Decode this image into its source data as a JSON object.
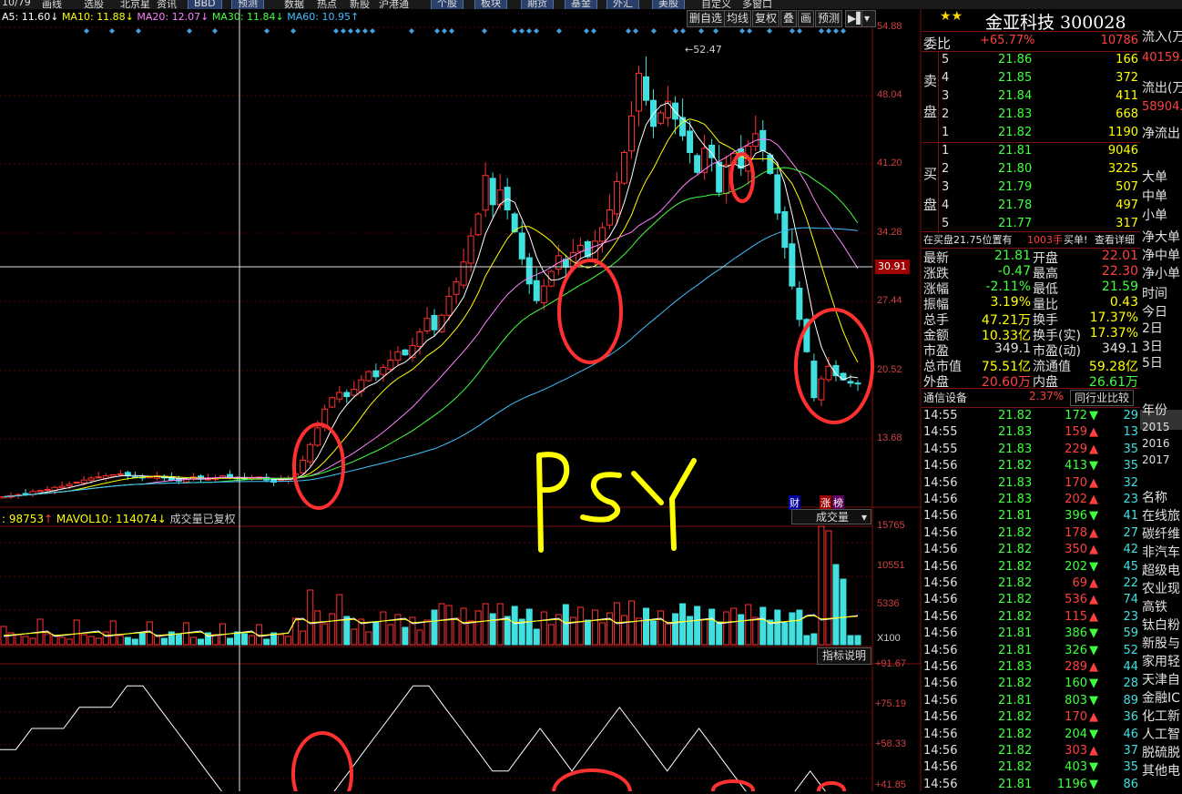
{
  "menu": {
    "items": [
      "10/79",
      "画线",
      "选股",
      "北京星",
      "资讯",
      "BBD",
      "预测",
      "数据",
      "热点",
      "新股",
      "沪港通",
      "个股",
      "板块",
      "期货",
      "基金",
      "外汇",
      "美股",
      "自定义",
      "多窗口"
    ]
  },
  "ma_indicator": {
    "ma5": "A5: 11.60",
    "ma10": "MA10: 11.88",
    "ma20": "MA20: 12.07",
    "ma30": "MA30: 11.84",
    "ma60": "MA60: 10.95",
    "colors": {
      "ma5": "#ffffff",
      "ma10": "#ffff00",
      "ma20": "#ff80ff",
      "ma30": "#40ff40",
      "ma60": "#40c0ff"
    }
  },
  "toolbar": {
    "del_watch": "删自选",
    "avg_line": "均线",
    "restore_rights": "复权",
    "overlay": "叠",
    "draw": "画",
    "forecast": "预测"
  },
  "price_axis": {
    "ticks": [
      "54.88",
      "48.04",
      "41.20",
      "34.28",
      "27.44",
      "20.52",
      "13.68"
    ],
    "cursor_value": "30.91",
    "peak_label": "52.47"
  },
  "badges": {
    "cai": "财",
    "zhangting": "涨",
    "bang": "榜"
  },
  "volume": {
    "header_left": ": 98753",
    "mavol10": "MAVOL10: 114074",
    "note": "成交量已复权",
    "selector": "成交量",
    "ticks": [
      "15765",
      "10551",
      "5336",
      "X100"
    ],
    "indicator_help": "指标说明"
  },
  "psy": {
    "ticks": [
      "+91.67",
      "+75.19",
      "+58.33",
      "+41.85"
    ],
    "handwritten": "PSY"
  },
  "quote": {
    "stars": "★★",
    "name_code": "金亚科技 300028",
    "weibi_label": "委比",
    "weibi_pct": "+65.77%",
    "weibi_vol": "10786",
    "sell_label_1": "卖",
    "sell_label_2": "盘",
    "buy_label_1": "买",
    "buy_label_2": "盘",
    "sell": [
      {
        "lv": "5",
        "price": "21.86",
        "vol": "166"
      },
      {
        "lv": "4",
        "price": "21.85",
        "vol": "372"
      },
      {
        "lv": "3",
        "price": "21.84",
        "vol": "411"
      },
      {
        "lv": "2",
        "price": "21.83",
        "vol": "668"
      },
      {
        "lv": "1",
        "price": "21.82",
        "vol": "1190"
      }
    ],
    "buy": [
      {
        "lv": "1",
        "price": "21.81",
        "vol": "9046"
      },
      {
        "lv": "2",
        "price": "21.80",
        "vol": "3225"
      },
      {
        "lv": "3",
        "price": "21.79",
        "vol": "507"
      },
      {
        "lv": "4",
        "price": "21.78",
        "vol": "497"
      },
      {
        "lv": "5",
        "price": "21.77",
        "vol": "317"
      }
    ],
    "bid_note_a": "在买盘21.75位置有",
    "bid_note_b": "1003手",
    "bid_note_c": "买单!",
    "bid_note_d": "查看详细",
    "stats": [
      {
        "l1": "最新",
        "v1": "21.81",
        "c1": "green",
        "l2": "开盘",
        "v2": "22.01",
        "c2": "red"
      },
      {
        "l1": "涨跌",
        "v1": "-0.47",
        "c1": "green",
        "l2": "最高",
        "v2": "22.30",
        "c2": "red"
      },
      {
        "l1": "涨幅",
        "v1": "-2.11%",
        "c1": "green",
        "l2": "最低",
        "v2": "21.59",
        "c2": "green"
      },
      {
        "l1": "振幅",
        "v1": "3.19%",
        "c1": "yellow",
        "l2": "量比",
        "v2": "0.43",
        "c2": "yellow"
      },
      {
        "l1": "总手",
        "v1": "47.21万",
        "c1": "yellow",
        "l2": "换手",
        "v2": "17.37%",
        "c2": "yellow"
      },
      {
        "l1": "金额",
        "v1": "10.33亿",
        "c1": "yellow",
        "l2": "换手(实)",
        "v2": "17.37%",
        "c2": "yellow"
      },
      {
        "l1": "市盈",
        "v1": "349.1",
        "c1": "white",
        "l2": "市盈(动)",
        "v2": "349.1",
        "c2": "white"
      },
      {
        "l1": "总市值",
        "v1": "75.51亿",
        "c1": "yellow",
        "l2": "流通值",
        "v2": "59.28亿",
        "c2": "yellow"
      },
      {
        "l1": "外盘",
        "v1": "20.60万",
        "c1": "red",
        "l2": "内盘",
        "v2": "26.61万",
        "c2": "green"
      }
    ],
    "industry": "通信设备",
    "industry_pct": "2.37%",
    "peer_compare": "同行业比较",
    "ticks": [
      {
        "t": "14:55",
        "p": "21.82",
        "v": "172",
        "d": "dn",
        "n": "29"
      },
      {
        "t": "14:55",
        "p": "21.83",
        "v": "159",
        "d": "up",
        "n": "13"
      },
      {
        "t": "14:55",
        "p": "21.83",
        "v": "229",
        "d": "up",
        "n": "35"
      },
      {
        "t": "14:56",
        "p": "21.82",
        "v": "413",
        "d": "dn",
        "n": "35"
      },
      {
        "t": "14:56",
        "p": "21.83",
        "v": "170",
        "d": "up",
        "n": "32"
      },
      {
        "t": "14:56",
        "p": "21.83",
        "v": "202",
        "d": "up",
        "n": "23"
      },
      {
        "t": "14:56",
        "p": "21.81",
        "v": "396",
        "d": "dn",
        "n": "41"
      },
      {
        "t": "14:56",
        "p": "21.82",
        "v": "178",
        "d": "up",
        "n": "27"
      },
      {
        "t": "14:56",
        "p": "21.82",
        "v": "350",
        "d": "up",
        "n": "42"
      },
      {
        "t": "14:56",
        "p": "21.82",
        "v": "202",
        "d": "dn",
        "n": "45"
      },
      {
        "t": "14:56",
        "p": "21.82",
        "v": "69",
        "d": "up",
        "n": "22"
      },
      {
        "t": "14:56",
        "p": "21.82",
        "v": "536",
        "d": "up",
        "n": "74"
      },
      {
        "t": "14:56",
        "p": "21.82",
        "v": "115",
        "d": "up",
        "n": "23"
      },
      {
        "t": "14:56",
        "p": "21.81",
        "v": "386",
        "d": "dn",
        "n": "59"
      },
      {
        "t": "14:56",
        "p": "21.81",
        "v": "326",
        "d": "dn",
        "n": "52"
      },
      {
        "t": "14:56",
        "p": "21.83",
        "v": "289",
        "d": "up",
        "n": "44"
      },
      {
        "t": "14:56",
        "p": "21.82",
        "v": "160",
        "d": "dn",
        "n": "28"
      },
      {
        "t": "14:56",
        "p": "21.81",
        "v": "803",
        "d": "dn",
        "n": "89"
      },
      {
        "t": "14:56",
        "p": "21.82",
        "v": "170",
        "d": "up",
        "n": "36"
      },
      {
        "t": "14:56",
        "p": "21.82",
        "v": "204",
        "d": "dn",
        "n": "46"
      },
      {
        "t": "14:56",
        "p": "21.82",
        "v": "303",
        "d": "up",
        "n": "37"
      },
      {
        "t": "14:56",
        "p": "21.82",
        "v": "403",
        "d": "dn",
        "n": "35"
      },
      {
        "t": "14:56",
        "p": "21.81",
        "v": "1196",
        "d": "dn",
        "n": "86"
      }
    ]
  },
  "far_right": {
    "items": [
      "流入(万",
      "40159.",
      "流出(万",
      "58904.",
      "净流出",
      "",
      "大单",
      "中单",
      "小单",
      "净大单",
      "净中单",
      "净小单",
      "时间",
      "今日",
      "2日",
      "3日",
      "5日",
      "",
      "",
      "年份",
      "2015",
      "2016",
      "2017",
      "",
      "名称",
      "在线旅",
      "碳纤维",
      "非汽车",
      "超级电",
      "农业现",
      "高铁",
      "钛白粉",
      "新股与",
      "家用轻",
      "天津自",
      "金融IC",
      "化工新",
      "人工智",
      "脱硫脱",
      "其他电"
    ]
  },
  "chart_data": {
    "type": "candlestick",
    "title": "",
    "ylim": [
      10.0,
      56.0
    ],
    "closes": [
      11.0,
      11.1,
      11.2,
      11.3,
      11.5,
      11.6,
      11.7,
      11.9,
      12.0,
      12.2,
      12.4,
      12.6,
      12.8,
      12.9,
      13.0,
      13.1,
      13.2,
      13.0,
      12.9,
      12.8,
      12.9,
      13.0,
      12.8,
      12.6,
      12.5,
      12.7,
      12.9,
      12.8,
      12.7,
      12.8,
      13.0,
      12.9,
      12.8,
      12.7,
      12.8,
      12.9,
      12.6,
      12.4,
      12.6,
      12.8,
      13.2,
      14.5,
      16.0,
      17.6,
      19.4,
      20.5,
      21.0,
      20.6,
      21.3,
      22.2,
      23.0,
      22.5,
      23.4,
      24.1,
      24.9,
      24.6,
      25.5,
      26.8,
      28.1,
      27.0,
      28.4,
      30.2,
      31.6,
      33.5,
      36.0,
      38.1,
      41.8,
      39.0,
      40.4,
      38.5,
      36.4,
      33.8,
      31.4,
      29.8,
      31.2,
      32.6,
      34.1,
      33.0,
      34.4,
      35.1,
      34.0,
      35.5,
      36.8,
      38.5,
      41.2,
      44.0,
      47.5,
      51.6,
      49.0,
      46.5,
      47.8,
      48.9,
      47.2,
      45.6,
      44.0,
      42.1,
      44.4,
      43.5,
      40.2,
      42.8,
      43.9,
      42.5,
      44.6,
      45.8,
      44.2,
      42.0,
      38.2,
      34.9,
      31.2,
      28.0,
      24.9,
      20.5,
      22.3,
      23.5,
      22.6,
      22.2,
      21.9,
      21.81
    ],
    "psy_values": [
      66.7,
      66.7,
      75.0,
      75.0,
      75.0,
      83.3,
      83.3,
      83.3,
      91.7,
      91.7,
      83.3,
      75.0,
      66.7,
      58.3,
      50.0,
      41.7,
      41.7,
      41.7,
      50.0,
      41.7,
      41.7,
      50.0,
      58.3,
      66.7,
      75.0,
      83.3,
      91.7,
      91.7,
      83.3,
      75.0,
      66.7,
      58.3,
      58.3,
      66.7,
      75.0,
      66.7,
      58.3,
      66.7,
      75.0,
      83.3,
      75.0,
      66.7,
      58.3,
      66.7,
      75.0,
      66.7,
      58.3,
      50.0,
      41.7,
      41.7,
      50.0,
      58.3,
      50.0,
      41.7,
      41.7
    ],
    "series": [
      {
        "name": "MA5",
        "color": "#ffffff"
      },
      {
        "name": "MA10",
        "color": "#ffff00"
      },
      {
        "name": "MA20",
        "color": "#ff80ff"
      },
      {
        "name": "MA30",
        "color": "#40ff40"
      },
      {
        "name": "MA60",
        "color": "#40c0ff"
      }
    ]
  }
}
